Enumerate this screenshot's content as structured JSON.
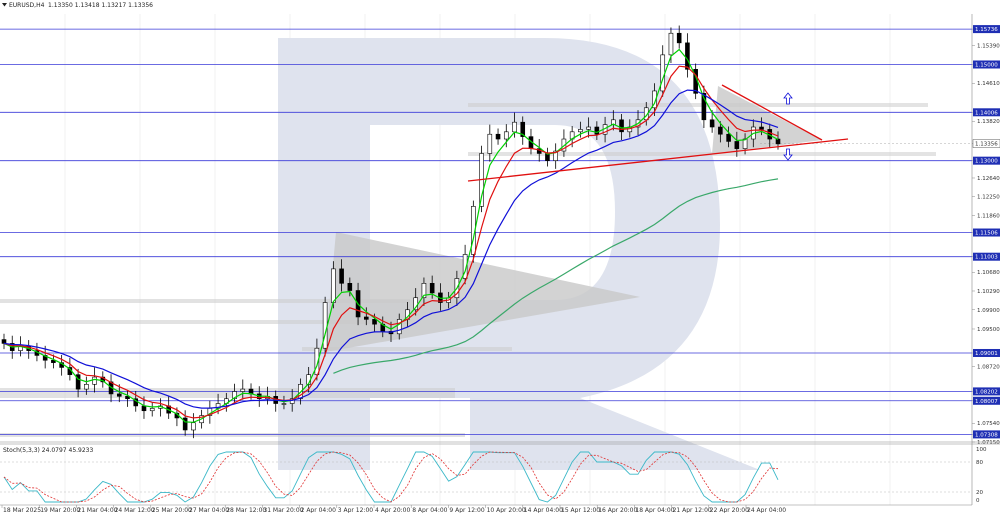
{
  "header": {
    "menu_icon": "triangle-down-icon",
    "symbol": "EURUSD,H4",
    "ohlc": "1.13350 1.13418 1.13217 1.13356"
  },
  "stoch": {
    "label": "Stoch(5,3,3) 24.0797 45.9233",
    "scale": [
      "100",
      "80",
      "20",
      "0"
    ]
  },
  "price_labels": [
    "1.15736",
    "1.15390",
    "1.15000",
    "1.14610",
    "1.14006",
    "1.13820",
    "1.13356",
    "1.13000",
    "1.12640",
    "1.12250",
    "1.11860",
    "1.11506",
    "1.11003",
    "1.10680",
    "1.10290",
    "1.09900",
    "1.09500",
    "1.09001",
    "1.08720",
    "1.08202",
    "1.08007",
    "1.07540",
    "1.07308",
    "1.07150"
  ],
  "time_labels": [
    "18 Mar 2025",
    "19 Mar 20:00",
    "21 Mar 04:00",
    "24 Mar 12:00",
    "25 Mar 20:00",
    "27 Mar 04:00",
    "28 Mar 12:00",
    "31 Mar 20:00",
    "2 Apr 04:00",
    "3 Apr 12:00",
    "4 Apr 20:00",
    "8 Apr 04:00",
    "9 Apr 12:00",
    "10 Apr 20:00",
    "14 Apr 04:00",
    "15 Apr 12:00",
    "16 Apr 20:00",
    "18 Apr 04:00",
    "21 Apr 12:00",
    "22 Apr 20:00",
    "24 Apr 04:00"
  ],
  "levels": [
    {
      "price": 1.15736,
      "label": "1.15736",
      "highlight": true
    },
    {
      "price": 1.15,
      "label": "1.15000",
      "highlight": true
    },
    {
      "price": 1.14006,
      "label": "1.14006",
      "highlight": true
    },
    {
      "price": 1.13,
      "label": "1.13000",
      "highlight": true
    },
    {
      "price": 1.11506,
      "label": "1.11506",
      "highlight": true
    },
    {
      "price": 1.11003,
      "label": "1.11003",
      "highlight": true
    },
    {
      "price": 1.09001,
      "label": "1.09001",
      "highlight": true
    },
    {
      "price": 1.08202,
      "label": "1.08202",
      "highlight": true
    },
    {
      "price": 1.08007,
      "label": "1.08007",
      "highlight": true
    },
    {
      "price": 1.07308,
      "label": "1.07308",
      "highlight": true
    }
  ],
  "current_price": {
    "price": 1.13356,
    "label": "1.13356"
  },
  "colors": {
    "level_line": "#3a3ad8",
    "label_bg": "#1f2fb4",
    "current_bg": "#ffffff",
    "ma_green": "#00d000",
    "ma_red": "#e01010",
    "ma_blue": "#1010d8",
    "ma_slow": "#3aa86a",
    "trendline": "#e01010",
    "triangle_fill": "#c8c8c8",
    "watermark": "#dfe3ee",
    "stoch_main": "#3bb8c8",
    "stoch_signal": "#e03030",
    "candle": "#000000"
  },
  "chart_data": {
    "type": "line",
    "title": "EURUSD,H4",
    "x_range": [
      "18 Mar 2025",
      "24 Apr 2025"
    ],
    "ylim": [
      1.0715,
      1.1605
    ],
    "grid": true,
    "series": [
      {
        "name": "EURUSD,H4",
        "values": [
          1.092,
          1.0905,
          1.0915,
          1.0905,
          1.0895,
          1.0885,
          1.088,
          1.087,
          1.0855,
          1.0825,
          1.0835,
          1.085,
          1.084,
          1.0815,
          1.081,
          1.0805,
          1.079,
          1.078,
          1.0785,
          1.079,
          1.0775,
          1.0765,
          1.074,
          1.0755,
          1.077,
          1.0785,
          1.0795,
          1.0805,
          1.082,
          1.0825,
          1.0815,
          1.0805,
          1.081,
          1.0795,
          1.0795,
          1.0805,
          1.0835,
          1.0855,
          1.091,
          1.1005,
          1.1075,
          1.1045,
          1.103,
          1.0975,
          1.097,
          1.096,
          1.0945,
          1.094,
          1.097,
          1.099,
          1.1015,
          1.1045,
          1.1025,
          1.1005,
          1.1015,
          1.1055,
          1.1105,
          1.1205,
          1.1315,
          1.1355,
          1.1345,
          1.136,
          1.138,
          1.135,
          1.1325,
          1.1315,
          1.13,
          1.132,
          1.1345,
          1.136,
          1.1365,
          1.137,
          1.1355,
          1.1375,
          1.1385,
          1.136,
          1.137,
          1.1385,
          1.141,
          1.1445,
          1.152,
          1.1565,
          1.1545,
          1.149,
          1.144,
          1.1385,
          1.137,
          1.1355,
          1.134,
          1.1325,
          1.1345,
          1.137,
          1.1365,
          1.1345,
          1.1335
        ]
      },
      {
        "name": "",
        "values": []
      }
    ],
    "annotations": [
      "1.15736",
      "1.15000",
      "1.14006",
      "1.13000",
      "1.11506",
      "1.11003",
      "1.09001",
      "1.08202",
      "1.08007",
      "1.07308"
    ]
  }
}
